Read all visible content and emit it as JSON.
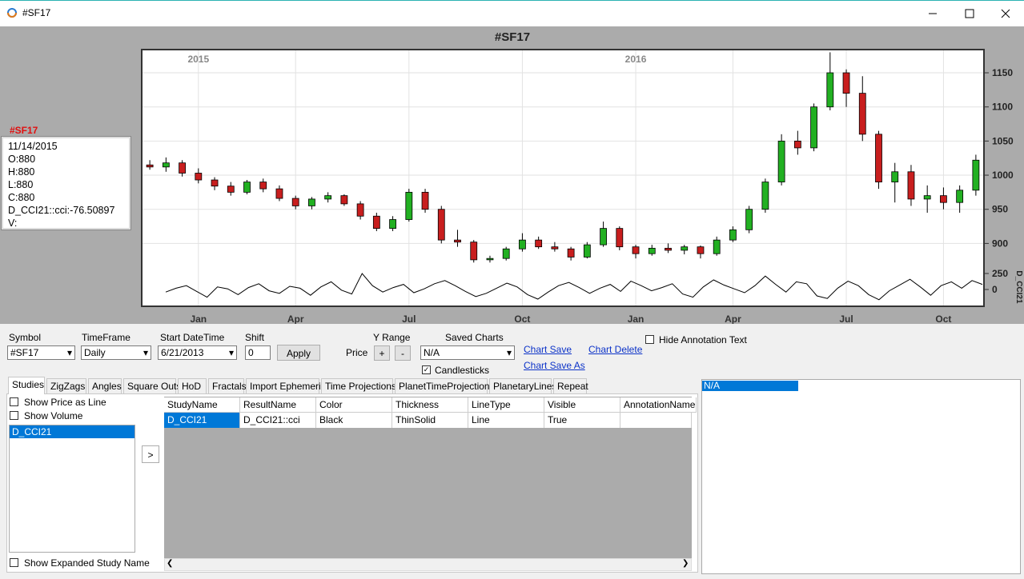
{
  "window": {
    "title": "#SF17"
  },
  "chart_title": "#SF17",
  "info": {
    "title": "#SF17",
    "lines": [
      "11/14/2015",
      "O:880",
      "H:880",
      "L:880",
      "C:880",
      "D_CCI21::cci:-76.50897",
      "V:"
    ]
  },
  "chart_data": [
    {
      "type": "candlestick",
      "categories": [
        null,
        null,
        null,
        "Jan",
        null,
        null,
        null,
        null,
        null,
        "Apr",
        null,
        null,
        null,
        null,
        null,
        null,
        "Jul",
        null,
        null,
        null,
        null,
        null,
        null,
        "Oct",
        null,
        null,
        null,
        null,
        null,
        null,
        "Jan",
        null,
        null,
        null,
        null,
        null,
        "Apr",
        null,
        null,
        null,
        null,
        null,
        null,
        "Jul",
        null,
        null,
        null,
        null,
        null,
        "Oct",
        null,
        null
      ],
      "year_categories": [
        null,
        null,
        null,
        "2015",
        null,
        null,
        null,
        null,
        null,
        null,
        null,
        null,
        null,
        null,
        null,
        null,
        null,
        null,
        null,
        null,
        null,
        null,
        null,
        null,
        null,
        null,
        null,
        null,
        null,
        null,
        "2016",
        null,
        null,
        null,
        null,
        null,
        null,
        null,
        null,
        null,
        null,
        null,
        null,
        null,
        null,
        null,
        null,
        null,
        null,
        null,
        null,
        null
      ],
      "open": [
        1015,
        1012,
        1018,
        1003,
        993,
        984,
        975,
        990,
        980,
        966,
        955,
        965,
        970,
        958,
        940,
        922,
        935,
        975,
        950,
        905,
        902,
        876,
        878,
        892,
        905,
        895,
        892,
        880,
        898,
        922,
        895,
        885,
        893,
        890,
        895,
        885,
        905,
        920,
        950,
        990,
        1050,
        1040,
        1100,
        1150,
        1120,
        1060,
        990,
        1005,
        965,
        970,
        960,
        978
      ],
      "high": [
        1022,
        1026,
        1022,
        1010,
        997,
        990,
        993,
        995,
        985,
        970,
        968,
        975,
        972,
        962,
        945,
        940,
        980,
        980,
        955,
        920,
        905,
        882,
        895,
        915,
        910,
        902,
        895,
        902,
        932,
        925,
        898,
        898,
        900,
        898,
        897,
        910,
        925,
        955,
        995,
        1060,
        1065,
        1105,
        1180,
        1155,
        1145,
        1065,
        1018,
        1015,
        985,
        982,
        985,
        1030
      ],
      "low": [
        1008,
        1005,
        998,
        988,
        978,
        970,
        972,
        975,
        962,
        950,
        950,
        960,
        955,
        935,
        918,
        918,
        932,
        945,
        900,
        895,
        872,
        872,
        875,
        888,
        892,
        888,
        875,
        878,
        895,
        890,
        878,
        882,
        886,
        884,
        878,
        882,
        902,
        915,
        945,
        985,
        1030,
        1035,
        1095,
        1100,
        1050,
        980,
        960,
        955,
        945,
        950,
        945,
        970
      ],
      "close": [
        1012,
        1018,
        1003,
        993,
        984,
        975,
        990,
        980,
        966,
        955,
        965,
        970,
        958,
        940,
        922,
        935,
        975,
        950,
        905,
        902,
        876,
        878,
        892,
        905,
        895,
        892,
        880,
        898,
        922,
        895,
        885,
        893,
        890,
        895,
        885,
        905,
        920,
        950,
        990,
        1050,
        1040,
        1100,
        1150,
        1120,
        1060,
        990,
        1005,
        965,
        970,
        960,
        978,
        1022
      ],
      "up_color": "#22b022",
      "down_color": "#c81e1e",
      "ylim": [
        870,
        1184
      ],
      "yticks": [
        900,
        950,
        1000,
        1050,
        1100,
        1150
      ],
      "grid": true
    },
    {
      "type": "line",
      "label": "D_CCI21",
      "color": "#000000",
      "values": [
        -40,
        20,
        60,
        -30,
        -120,
        40,
        10,
        -80,
        30,
        90,
        -20,
        -60,
        50,
        20,
        -90,
        40,
        120,
        -10,
        -70,
        250,
        60,
        -40,
        30,
        80,
        -50,
        10,
        90,
        140,
        60,
        -30,
        -110,
        -60,
        20,
        100,
        40,
        -80,
        -150,
        -40,
        60,
        110,
        30,
        -60,
        20,
        80,
        -30,
        130,
        60,
        -20,
        30,
        90,
        -70,
        -120,
        40,
        150,
        70,
        10,
        -50,
        60,
        210,
        80,
        -40,
        120,
        90,
        -100,
        -140,
        20,
        130,
        60,
        -80,
        -160,
        -20,
        70,
        160,
        40,
        -90,
        60,
        120,
        20,
        140,
        80
      ],
      "ylim": [
        -262,
        337
      ],
      "yticks": [
        0,
        250
      ]
    }
  ],
  "controls": {
    "symbol_label": "Symbol",
    "symbol": "#SF17",
    "timeframe_label": "TimeFrame",
    "timeframe": "Daily",
    "start_label": "Start DateTime",
    "start": "6/21/2013",
    "shift_label": "Shift",
    "shift": "0",
    "apply": "Apply",
    "yrange_label": "Y Range",
    "price_label": "Price",
    "plus": "+",
    "minus": "-",
    "saved_label": "Saved Charts",
    "saved": "N/A",
    "candlesticks": "Candlesticks",
    "chart_save": "Chart Save",
    "chart_save_as": "Chart Save As",
    "chart_delete": "Chart Delete",
    "hide_annotation": "Hide Annotation Text"
  },
  "tabs": [
    "Studies",
    "ZigZags",
    "Angles",
    "Square Outs",
    "HoD",
    "Fractals",
    "Import Ephemeris",
    "Time Projections",
    "PlanetTimeProjections",
    "PlanetaryLines",
    "Repeat"
  ],
  "studies": {
    "show_price_line": "Show Price as Line",
    "show_volume": "Show Volume",
    "items": [
      "D_CCI21"
    ],
    "move": ">",
    "show_expanded": "Show Expanded Study Name"
  },
  "table": {
    "columns": [
      "StudyName",
      "ResultName",
      "Color",
      "Thickness",
      "LineType",
      "Visible",
      "AnnotationName"
    ],
    "rows": [
      [
        "D_CCI21",
        "D_CCI21::cci",
        "Black",
        "ThinSolid",
        "Line",
        "True"
      ]
    ]
  },
  "annotations": [
    "N/A"
  ]
}
